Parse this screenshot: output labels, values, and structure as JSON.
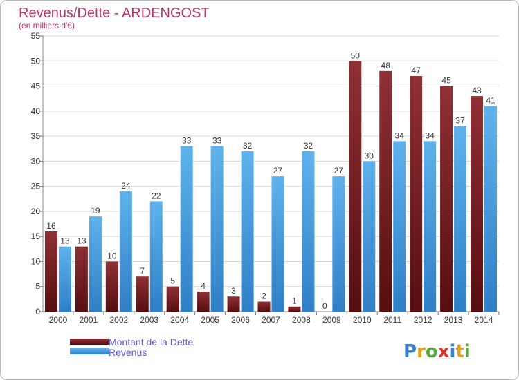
{
  "chart_data": {
    "type": "bar",
    "title": "Revenus/Dette - ARDENGOST",
    "subtitle": "(en milliers d'€)",
    "xlabel": "",
    "ylabel": "",
    "ylim": [
      0,
      55
    ],
    "yticks": [
      0,
      5,
      10,
      15,
      20,
      25,
      30,
      35,
      40,
      45,
      50,
      55
    ],
    "grid": true,
    "legend_position": "bottom-left",
    "categories": [
      "2000",
      "2001",
      "2002",
      "2003",
      "2004",
      "2005",
      "2006",
      "2007",
      "2008",
      "2009",
      "2010",
      "2011",
      "2012",
      "2013",
      "2014"
    ],
    "series": [
      {
        "name": "Montant de la Dette",
        "color": "#7a1f22",
        "values": [
          16,
          13,
          10,
          7,
          5,
          4,
          3,
          2,
          1,
          0,
          50,
          48,
          47,
          45,
          43
        ]
      },
      {
        "name": "Revenus",
        "color": "#3d9be0",
        "values": [
          13,
          19,
          24,
          22,
          33,
          33,
          32,
          27,
          32,
          27,
          30,
          34,
          34,
          37,
          41
        ]
      }
    ]
  },
  "logo": {
    "text": "Proxiti",
    "letter_colors": [
      "#3a7fd0",
      "#e0a020",
      "#5aaa3c",
      "#e03030",
      "#3a7fd0",
      "#e0a020",
      "#5aaa3c"
    ]
  }
}
